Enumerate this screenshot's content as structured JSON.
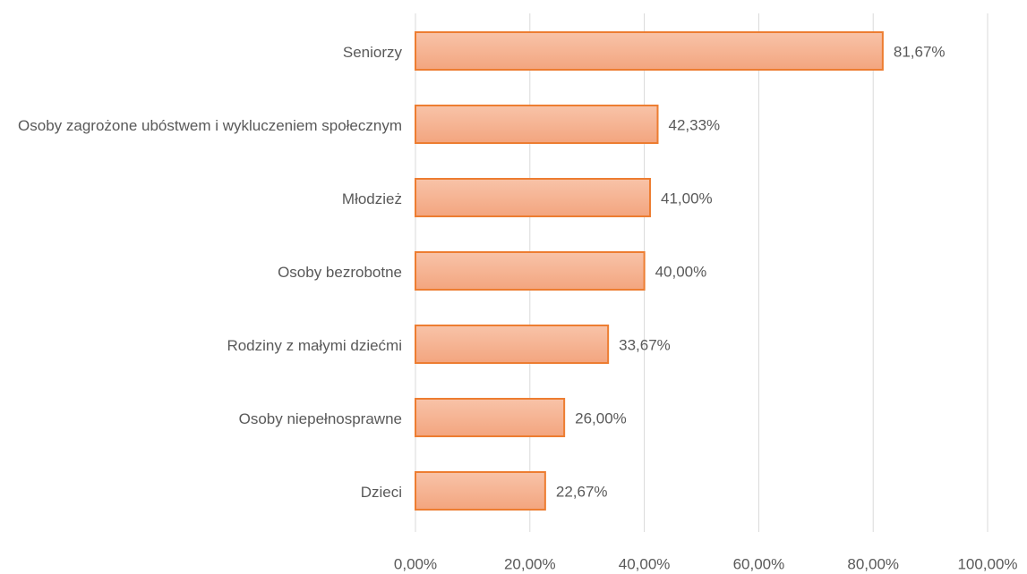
{
  "chart_data": {
    "type": "hbar",
    "categories": [
      "Seniorzy",
      "Osoby zagrożone ubóstwem i wykluczeniem społecznym",
      "Młodzież",
      "Osoby bezrobotne",
      "Rodziny z małymi dziećmi",
      "Osoby niepełnosprawne",
      "Dzieci"
    ],
    "values": [
      81.67,
      42.33,
      41.0,
      40.0,
      33.67,
      26.0,
      22.67
    ],
    "value_labels": [
      "81,67%",
      "42,33%",
      "41,00%",
      "40,00%",
      "33,67%",
      "26,00%",
      "22,67%"
    ],
    "color": "#f5b08f",
    "edge_color": "#ed7d31",
    "xlim": [
      0,
      100
    ],
    "xticks": [
      {
        "value": 0,
        "label": "0,00%"
      },
      {
        "value": 20,
        "label": "20,00%"
      },
      {
        "value": 40,
        "label": "40,00%"
      },
      {
        "value": 60,
        "label": "60,00%"
      },
      {
        "value": 80,
        "label": "80,00%"
      },
      {
        "value": 100,
        "label": "100,00%"
      }
    ],
    "grid": true
  }
}
